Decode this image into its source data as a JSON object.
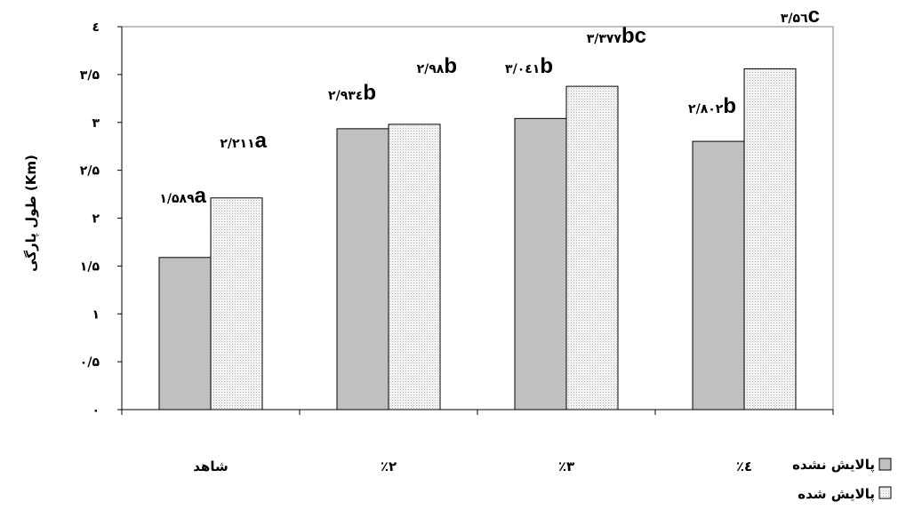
{
  "chart_data": {
    "type": "bar",
    "categories": [
      "شاهد",
      "٪۲",
      "٪۳",
      "٪٤"
    ],
    "series": [
      {
        "name": "پالایش نشده",
        "values": [
          1.589,
          2.934,
          3.041,
          2.802
        ],
        "labels": [
          "۱/۵۸۹a",
          "۲/۹۳٤b",
          "۳/۰٤۱b",
          "۲/۸۰۲b"
        ],
        "color": "#c0c0c0"
      },
      {
        "name": "پالایش شده",
        "values": [
          2.211,
          2.98,
          3.377,
          3.56
        ],
        "labels": [
          "۲/۲۱۱a",
          "۲/۹۸b",
          "۳/۳۷۷bc",
          "۳/۵٦c"
        ],
        "color": "#e6e6e6"
      }
    ],
    "ylabel": "طول پارگی (Km)",
    "xlabel": "",
    "ylim": [
      0,
      4
    ],
    "yticks": [
      0,
      0.5,
      1,
      1.5,
      2,
      2.5,
      3,
      3.5,
      4
    ],
    "ytick_labels": [
      "۰",
      "۰/۵",
      "۱",
      "۱/۵",
      "۲",
      "۲/۵",
      "۳",
      "۳/۵",
      "٤"
    ],
    "grid": false,
    "legend_position": "bottom-right"
  }
}
